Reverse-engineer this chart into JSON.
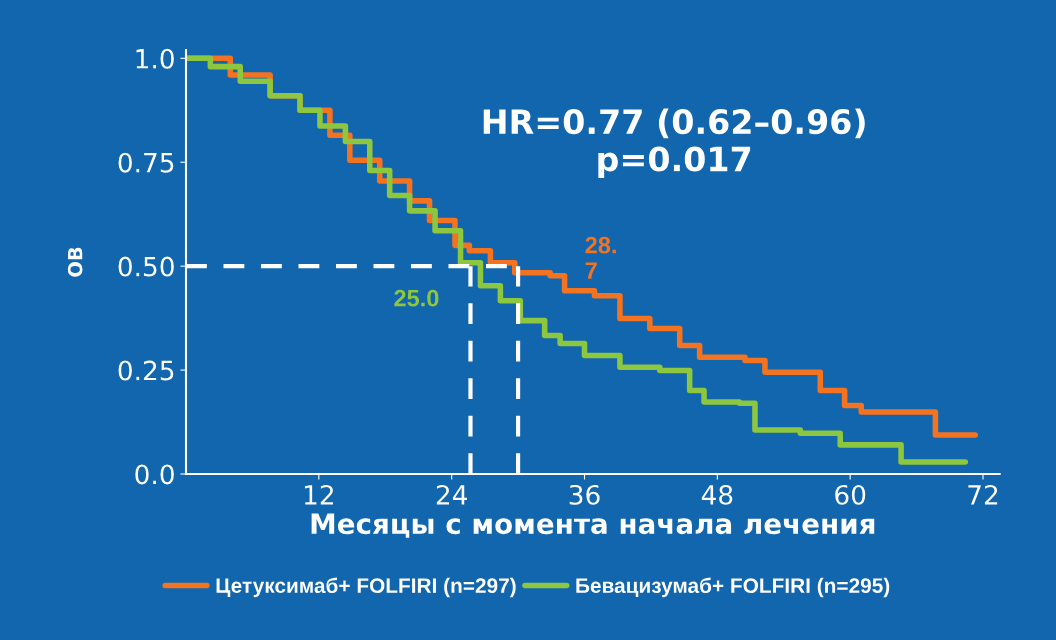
{
  "chart_data": {
    "type": "step",
    "xlabel": "Месяцы с момента начала лечения",
    "ylabel": "ОВ",
    "series": [
      {
        "name": "Цетуксимаб+ FOLFIRI (n=297)",
        "color": "#f47321",
        "x": [
          0,
          4,
          7.6,
          10.3,
          13,
          14.8,
          17.5,
          20.2,
          22,
          24.3,
          25.6,
          27.5,
          29.7,
          32.9,
          34.2,
          36.9,
          39.2,
          41.9,
          44.6,
          46.4,
          50.5,
          52.3,
          55.5,
          57.3,
          59.5,
          61,
          67.7,
          71.3
        ],
        "values": [
          1.0,
          0.96,
          0.91,
          0.875,
          0.815,
          0.755,
          0.705,
          0.657,
          0.61,
          0.55,
          0.537,
          0.508,
          0.484,
          0.477,
          0.441,
          0.429,
          0.374,
          0.35,
          0.309,
          0.281,
          0.273,
          0.245,
          0.245,
          0.201,
          0.165,
          0.149,
          0.094,
          0.094
        ]
      },
      {
        "name": "Бевацизумаб+ FOLFIRI (n=295)",
        "color": "#8dc63f",
        "x": [
          0,
          2.2,
          4.9,
          7.6,
          10.3,
          12.1,
          14.4,
          16.6,
          18.4,
          20.2,
          22.5,
          24.8,
          26.6,
          28.4,
          30.2,
          32.4,
          33.8,
          36,
          39.2,
          42.8,
          45.5,
          46.8,
          50,
          51.4,
          55.5,
          59.1,
          64.6,
          70.4
        ],
        "values": [
          1.0,
          0.98,
          0.945,
          0.91,
          0.875,
          0.837,
          0.8,
          0.73,
          0.67,
          0.633,
          0.585,
          0.508,
          0.453,
          0.417,
          0.369,
          0.333,
          0.314,
          0.285,
          0.257,
          0.249,
          0.201,
          0.173,
          0.17,
          0.106,
          0.098,
          0.07,
          0.029,
          0.029
        ]
      }
    ],
    "xlim": [
      0,
      73.5
    ],
    "xticks": [
      12,
      24,
      36,
      48,
      60,
      72
    ],
    "ylim": [
      0,
      1.02
    ],
    "yticks": [
      {
        "value": 0,
        "label": "0.0"
      },
      {
        "value": 0.25,
        "label": "0.25"
      },
      {
        "value": 0.5,
        "label": "0.50"
      },
      {
        "value": 0.75,
        "label": "0.75"
      },
      {
        "value": 1.0,
        "label": "1.0"
      }
    ],
    "ref_lines": [
      {
        "axis": "y",
        "value": 0.5,
        "color": "#ffffff",
        "line_style": "dashed"
      },
      {
        "axis": "x",
        "value": 25.7,
        "color": "#ffffff",
        "line_style": "dashed"
      },
      {
        "axis": "x",
        "value": 30.0,
        "color": "#ffffff",
        "line_style": "dashed"
      }
    ],
    "annotations": [
      "HR=0.77 (0.62–0.96)\np=0.017",
      "25.0",
      "28.\n7"
    ],
    "grid": false,
    "legend": "bottom"
  }
}
